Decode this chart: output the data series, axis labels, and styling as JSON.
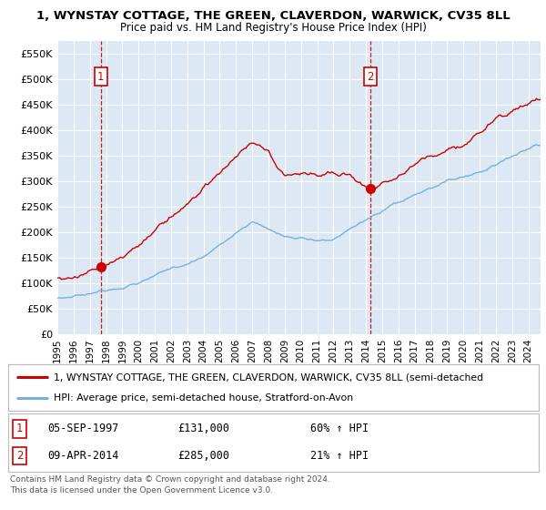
{
  "title1": "1, WYNSTAY COTTAGE, THE GREEN, CLAVERDON, WARWICK, CV35 8LL",
  "title2": "Price paid vs. HM Land Registry's House Price Index (HPI)",
  "ylabel_ticks": [
    "£0",
    "£50K",
    "£100K",
    "£150K",
    "£200K",
    "£250K",
    "£300K",
    "£350K",
    "£400K",
    "£450K",
    "£500K",
    "£550K"
  ],
  "ytick_vals": [
    0,
    50000,
    100000,
    150000,
    200000,
    250000,
    300000,
    350000,
    400000,
    450000,
    500000,
    550000
  ],
  "ylim": [
    0,
    575000
  ],
  "xlim_start": 1995.0,
  "xlim_end": 2024.75,
  "purchase1_date": 1997.68,
  "purchase1_price": 131000,
  "purchase2_date": 2014.27,
  "purchase2_price": 285000,
  "hpi_color": "#7ab0d8",
  "price_color": "#cc0000",
  "bg_color": "#dce9f5",
  "grid_color": "#ffffff",
  "vline_color": "#cc0000",
  "legend_label1": "1, WYNSTAY COTTAGE, THE GREEN, CLAVERDON, WARWICK, CV35 8LL (semi-detached",
  "legend_label2": "HPI: Average price, semi-detached house, Stratford-on-Avon",
  "note1_label": "1",
  "note1_date": "05-SEP-1997",
  "note1_price": "£131,000",
  "note1_hpi": "60% ↑ HPI",
  "note2_label": "2",
  "note2_date": "09-APR-2014",
  "note2_price": "£285,000",
  "note2_hpi": "21% ↑ HPI",
  "footer": "Contains HM Land Registry data © Crown copyright and database right 2024.\nThis data is licensed under the Open Government Licence v3.0.",
  "xtick_years": [
    1995,
    1996,
    1997,
    1998,
    1999,
    2000,
    2001,
    2002,
    2003,
    2004,
    2005,
    2006,
    2007,
    2008,
    2009,
    2010,
    2011,
    2012,
    2013,
    2014,
    2015,
    2016,
    2017,
    2018,
    2019,
    2020,
    2021,
    2022,
    2023,
    2024
  ]
}
